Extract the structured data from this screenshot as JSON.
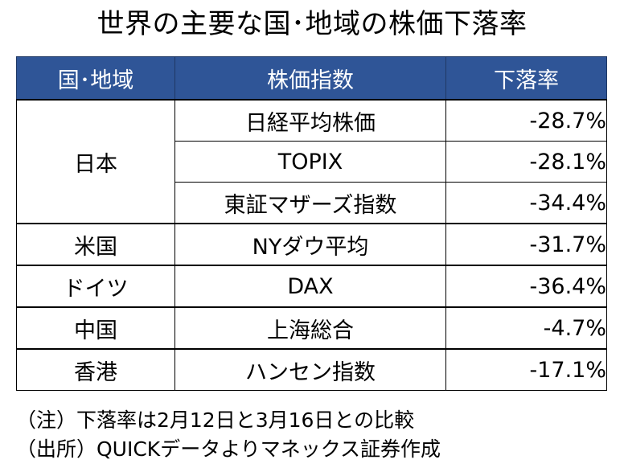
{
  "title": "世界の主要な国･地域の株価下落率",
  "table": {
    "headers": {
      "region": "国･地域",
      "index": "株価指数",
      "decline": "下落率"
    },
    "groups": [
      {
        "region": "日本",
        "rows": [
          {
            "index": "日経平均株価",
            "decline": "-28.7%"
          },
          {
            "index": "TOPIX",
            "decline": "-28.1%"
          },
          {
            "index": "東証マザーズ指数",
            "decline": "-34.4%"
          }
        ]
      },
      {
        "region": "米国",
        "rows": [
          {
            "index": "NYダウ平均",
            "decline": "-31.7%"
          }
        ]
      },
      {
        "region": "ドイツ",
        "rows": [
          {
            "index": "DAX",
            "decline": "-36.4%"
          }
        ]
      },
      {
        "region": "中国",
        "rows": [
          {
            "index": "上海総合",
            "decline": "-4.7%"
          }
        ]
      },
      {
        "region": "香港",
        "rows": [
          {
            "index": "ハンセン指数",
            "decline": "-17.1%"
          }
        ]
      }
    ]
  },
  "notes": [
    "（注）下落率は2月12日と3月16日との比較",
    "（出所）QUICKデータよりマネックス証券作成"
  ],
  "colors": {
    "header_background": "#2f5597",
    "header_text": "#ffffff"
  }
}
